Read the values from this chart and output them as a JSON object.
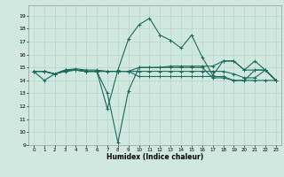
{
  "title": "",
  "xlabel": "Humidex (Indice chaleur)",
  "xlim": [
    -0.5,
    23.5
  ],
  "ylim": [
    9,
    19.8
  ],
  "yticks": [
    9,
    10,
    11,
    12,
    13,
    14,
    15,
    16,
    17,
    18,
    19
  ],
  "xticks": [
    0,
    1,
    2,
    3,
    4,
    5,
    6,
    7,
    8,
    9,
    10,
    11,
    12,
    13,
    14,
    15,
    16,
    17,
    18,
    19,
    20,
    21,
    22,
    23
  ],
  "bg_color": "#d0e8e0",
  "line_color": "#1a6b5a",
  "grid_color": "#b8d8d0",
  "lines": [
    [
      14.7,
      14.0,
      14.5,
      14.7,
      14.8,
      14.7,
      14.7,
      13.0,
      9.2,
      13.2,
      15.0,
      15.0,
      15.0,
      15.0,
      15.0,
      15.0,
      15.0,
      14.2,
      14.2,
      14.0,
      14.0,
      14.8,
      14.8,
      14.0
    ],
    [
      14.7,
      14.7,
      14.5,
      14.7,
      14.8,
      14.7,
      14.7,
      11.8,
      14.8,
      17.2,
      18.3,
      18.8,
      17.5,
      17.1,
      16.5,
      17.5,
      15.8,
      14.4,
      15.5,
      15.5,
      14.8,
      15.5,
      14.8,
      14.0
    ],
    [
      14.7,
      14.7,
      14.5,
      14.8,
      14.8,
      14.7,
      14.7,
      14.7,
      14.7,
      14.7,
      15.0,
      15.0,
      15.0,
      15.1,
      15.1,
      15.1,
      15.1,
      15.1,
      15.5,
      15.5,
      14.8,
      14.8,
      14.8,
      14.0
    ],
    [
      14.7,
      14.7,
      14.5,
      14.8,
      14.8,
      14.7,
      14.7,
      14.7,
      14.7,
      14.7,
      14.3,
      14.3,
      14.3,
      14.3,
      14.3,
      14.3,
      14.3,
      14.3,
      14.3,
      14.0,
      14.0,
      14.0,
      14.0,
      14.0
    ],
    [
      14.7,
      14.7,
      14.5,
      14.8,
      14.9,
      14.8,
      14.8,
      14.7,
      14.7,
      14.7,
      14.7,
      14.7,
      14.7,
      14.7,
      14.7,
      14.7,
      14.7,
      14.7,
      14.7,
      14.5,
      14.2,
      14.2,
      14.8,
      14.0
    ]
  ]
}
